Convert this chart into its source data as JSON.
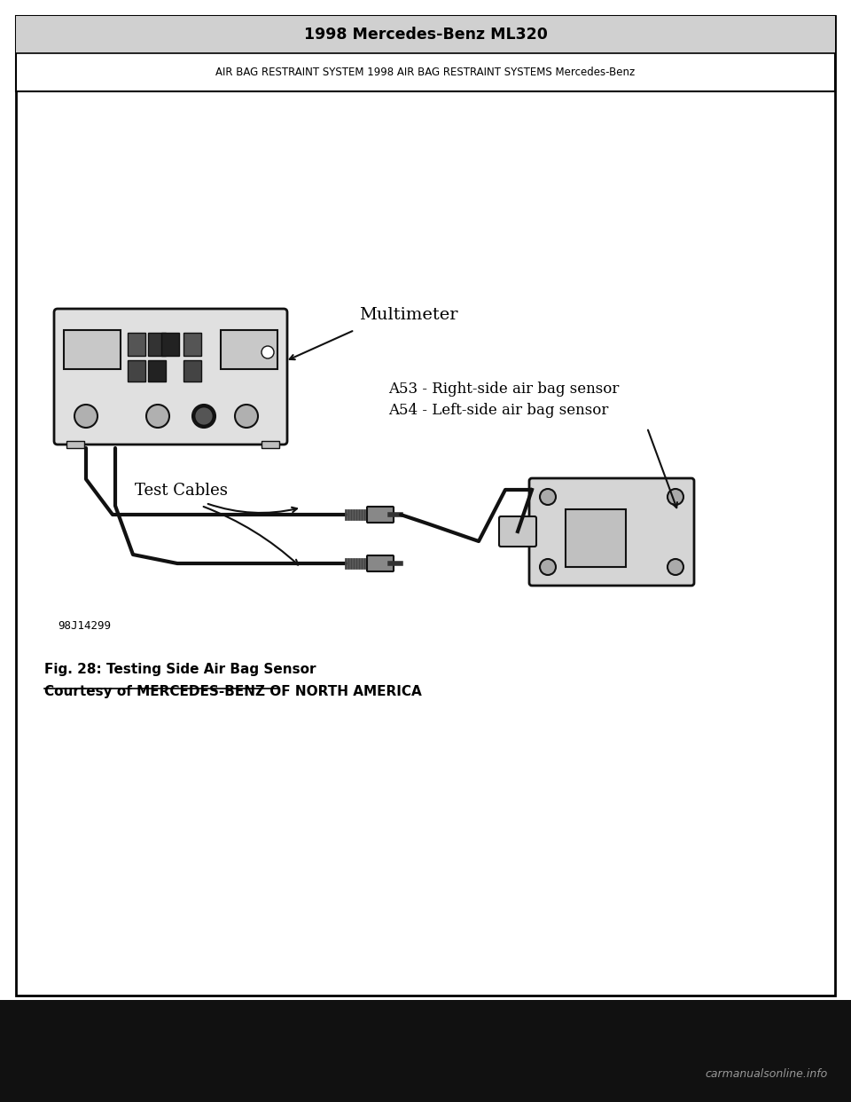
{
  "title": "1998 Mercedes-Benz ML320",
  "subtitle": "AIR BAG RESTRAINT SYSTEM 1998 AIR BAG RESTRAINT SYSTEMS Mercedes-Benz",
  "fig_caption_line1": "Fig. 28: Testing Side Air Bag Sensor",
  "fig_caption_line2": "Courtesy of MERCEDES-BENZ OF NORTH AMERICA",
  "image_id": "98J14299",
  "label_multimeter": "Multimeter",
  "label_sensors_line1": "A53 - Right-side air bag sensor",
  "label_sensors_line2": "A54 - Left-side air bag sensor",
  "label_cables": "Test Cables",
  "footer_text": "carmanualsonline.info",
  "page_bg": "#ffffff",
  "header_title_bg": "#d0d0d0",
  "border_color": "#000000",
  "footer_bg": "#111111",
  "footer_text_color": "#999999",
  "text_color": "#000000",
  "diagram_line_color": "#111111"
}
